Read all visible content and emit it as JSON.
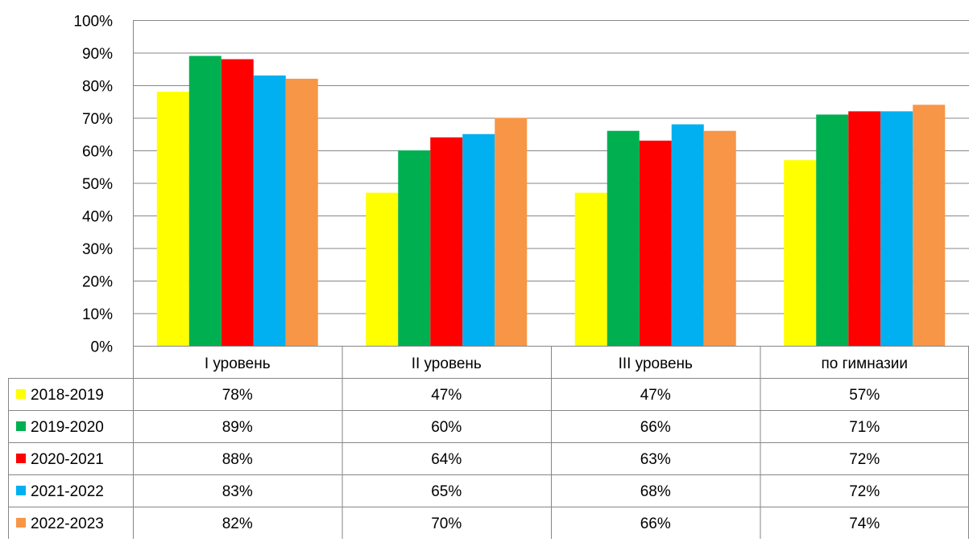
{
  "chart_data": {
    "type": "bar",
    "categories": [
      "I уровень",
      "II уровень",
      "III уровень",
      "по гимназии"
    ],
    "series": [
      {
        "name": "2018-2019",
        "color": "#FFFF00",
        "values": [
          78,
          47,
          47,
          57
        ],
        "labels": [
          "78%",
          "47%",
          "47%",
          "57%"
        ]
      },
      {
        "name": "2019-2020",
        "color": "#00B050",
        "values": [
          89,
          60,
          66,
          71
        ],
        "labels": [
          "89%",
          "60%",
          "66%",
          "71%"
        ]
      },
      {
        "name": "2020-2021",
        "color": "#FF0000",
        "values": [
          88,
          64,
          63,
          72
        ],
        "labels": [
          "88%",
          "64%",
          "63%",
          "72%"
        ]
      },
      {
        "name": "2021-2022",
        "color": "#00B0F0",
        "values": [
          83,
          65,
          68,
          72
        ],
        "labels": [
          "83%",
          "65%",
          "68%",
          "72%"
        ]
      },
      {
        "name": "2022-2023",
        "color": "#F79646",
        "values": [
          82,
          70,
          66,
          74
        ],
        "labels": [
          "82%",
          "70%",
          "66%",
          "74%"
        ]
      }
    ],
    "yticks": [
      "0%",
      "10%",
      "20%",
      "30%",
      "40%",
      "50%",
      "60%",
      "70%",
      "80%",
      "90%",
      "100%"
    ],
    "ylim": [
      0,
      100
    ],
    "grid": true,
    "legend": "data-table"
  }
}
